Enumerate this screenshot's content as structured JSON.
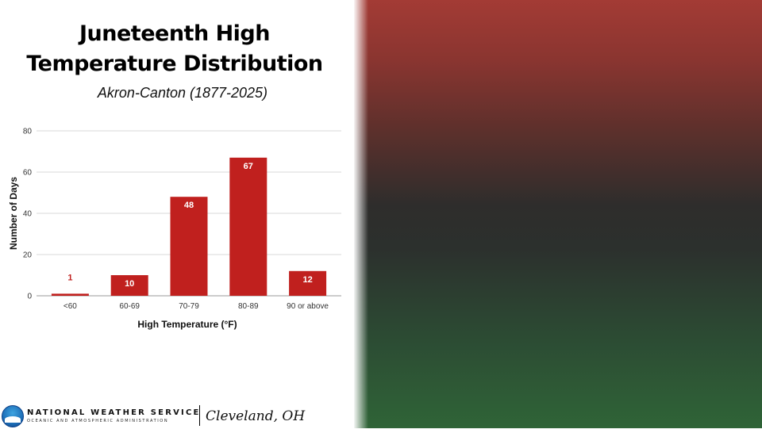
{
  "title_line1": "Juneteenth High",
  "title_line2": "Temperature Distribution",
  "subtitle": "Akron-Canton (1877-2025)",
  "colors": {
    "bar": "#c0201e",
    "grid": "#d9d9d9",
    "gradient_top": "#a33b35",
    "gradient_mid": "#2e2d2c",
    "gradient_bottom": "#2f6437"
  },
  "chart_data": {
    "type": "bar",
    "title": "",
    "xlabel": "High Temperature (°F)",
    "ylabel": "Number of Days",
    "categories": [
      "<60",
      "60-69",
      "70-79",
      "80-89",
      "90 or above"
    ],
    "values": [
      1,
      10,
      48,
      67,
      12
    ],
    "ylim": [
      0,
      80
    ],
    "yticks": [
      0,
      20,
      40,
      60,
      80
    ],
    "grid": true,
    "legend": "none",
    "data_labels": true
  },
  "footer": {
    "org_name": "NATIONAL WEATHER SERVICE",
    "org_sub": "OCEANIC AND ATMOSPHERIC ADMINISTRATION",
    "office": "Cleveland, OH",
    "logo_icon": "noaa-logo-icon"
  }
}
